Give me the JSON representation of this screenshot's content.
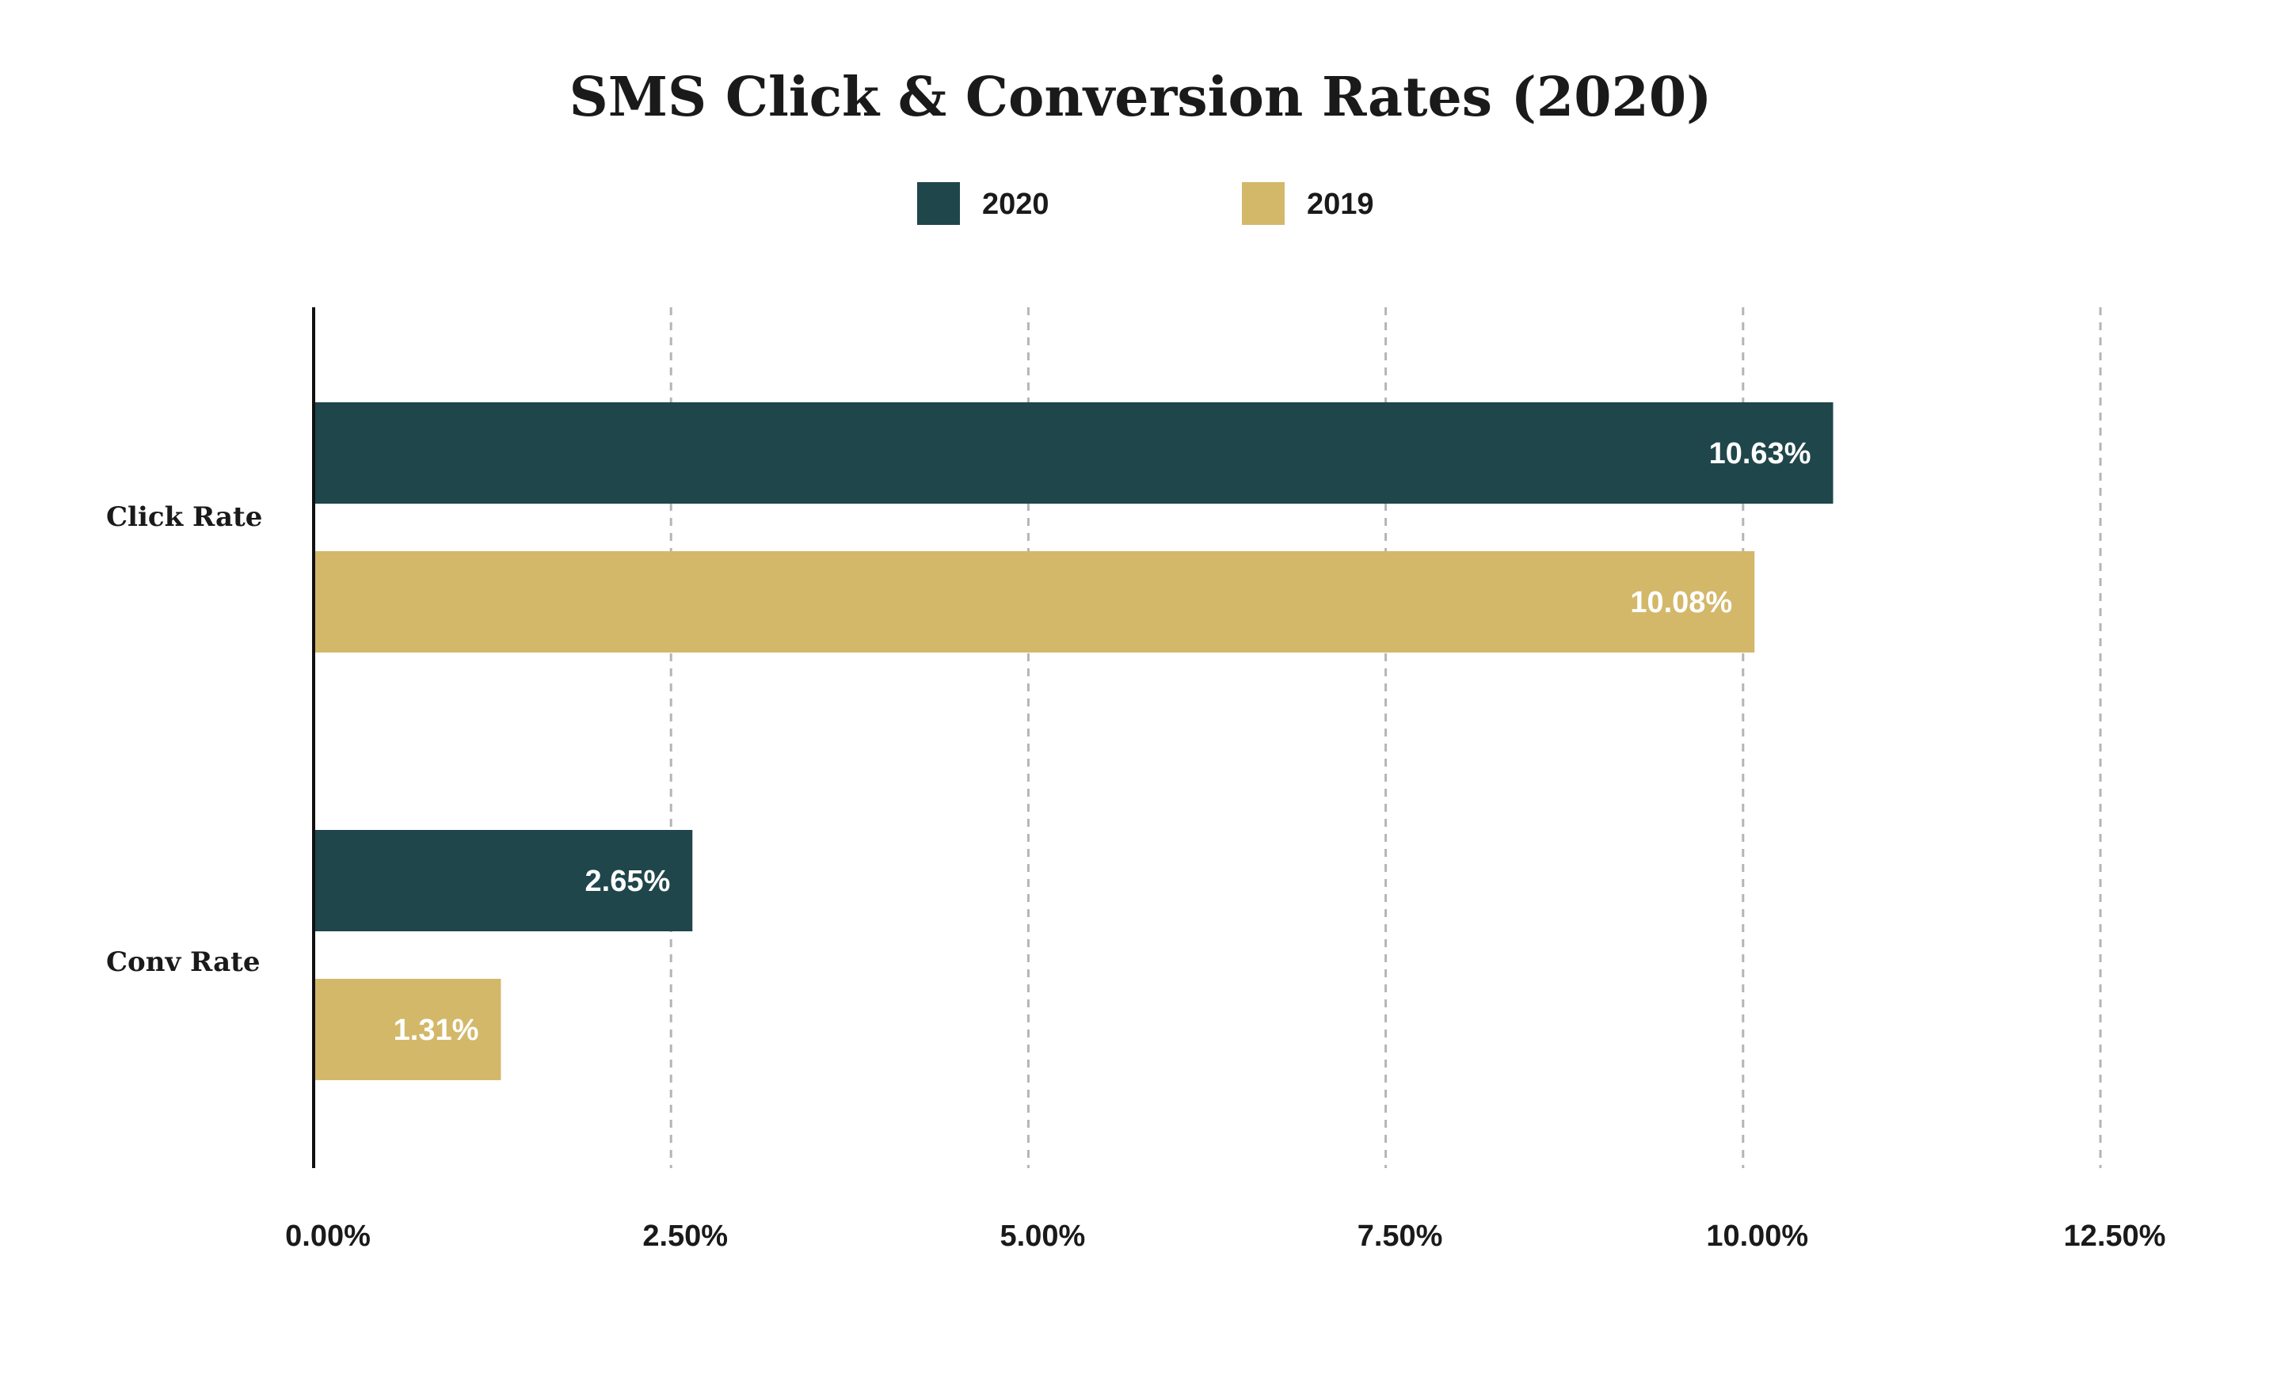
{
  "chart_data": {
    "type": "bar",
    "orientation": "horizontal",
    "title": "SMS Click & Conversion Rates (2020)",
    "xlabel": "",
    "ylabel": "",
    "categories": [
      "Click Rate",
      "Conv Rate"
    ],
    "series": [
      {
        "name": "2020",
        "color": "#1f464b",
        "values": [
          10.63,
          2.65
        ],
        "labels": [
          "10.63%",
          "2.65%"
        ]
      },
      {
        "name": "2019",
        "color": "#d3b86a",
        "values": [
          10.08,
          1.31
        ],
        "labels": [
          "10.08%",
          "1.31%"
        ]
      }
    ],
    "xlim": [
      0,
      12.5
    ],
    "xticks": [
      0,
      2.5,
      5,
      7.5,
      10,
      12.5
    ],
    "xtick_labels": [
      "0.00%",
      "2.50%",
      "5.00%",
      "7.50%",
      "10.00%",
      "12.50%"
    ],
    "grid": "vertical dashed",
    "legend_position": "top-center"
  }
}
